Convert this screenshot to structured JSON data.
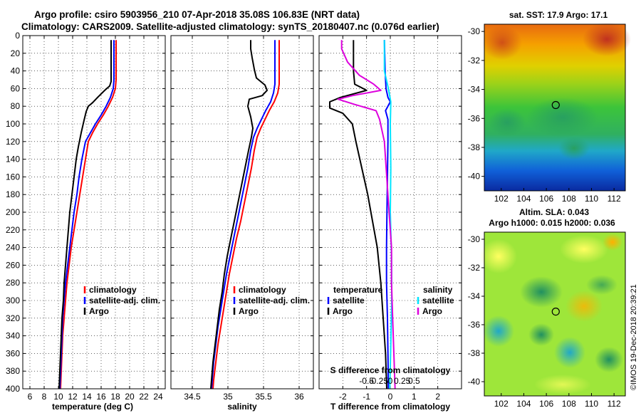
{
  "colors": {
    "climatology": "#ff0000",
    "satellite": "#0000ff",
    "argo": "#000000",
    "temp_sat": "#0000ff",
    "temp_argo": "#000000",
    "sal_sat": "#00e5ff",
    "sal_argo": "#dd00dd",
    "grid": "#000000",
    "marker": "#000000"
  },
  "header": {
    "line1": "Argo profile: csiro 5903956_210 07-Apr-2018 35.08S 106.83E (NRT data)",
    "line2": "Climatology: CARS2009. Satellite-adjusted climatology: synTS_20180407.nc (0.076d earlier)"
  },
  "watermark": "©IMOS 19-Dec-2018 20:39:21",
  "chart_data": [
    {
      "type": "line",
      "panel": "temperature",
      "xlabel": "temperature (deg C)",
      "ylabel": "",
      "xlim": [
        5,
        25
      ],
      "ylim": [
        0,
        400
      ],
      "xticks": [
        6,
        8,
        10,
        12,
        14,
        16,
        18,
        20,
        22,
        24
      ],
      "yticks": [
        0,
        20,
        40,
        60,
        80,
        100,
        120,
        140,
        160,
        180,
        200,
        220,
        240,
        260,
        280,
        300,
        320,
        340,
        360,
        380,
        400
      ],
      "grid": true,
      "legend": [
        "climatology",
        "satellite-adj. clim.",
        "Argo"
      ],
      "series": [
        {
          "name": "climatology",
          "color_key": "climatology",
          "points": [
            [
              18.1,
              5
            ],
            [
              18.1,
              50
            ],
            [
              18.0,
              60
            ],
            [
              17.6,
              70
            ],
            [
              17.0,
              80
            ],
            [
              16.3,
              90
            ],
            [
              15.5,
              100
            ],
            [
              14.8,
              110
            ],
            [
              14.2,
              120
            ],
            [
              13.8,
              140
            ],
            [
              13.4,
              160
            ],
            [
              13.0,
              180
            ],
            [
              12.6,
              200
            ],
            [
              12.2,
              220
            ],
            [
              11.8,
              240
            ],
            [
              11.5,
              260
            ],
            [
              11.2,
              280
            ],
            [
              11.0,
              300
            ],
            [
              10.8,
              320
            ],
            [
              10.6,
              340
            ],
            [
              10.5,
              360
            ],
            [
              10.4,
              380
            ],
            [
              10.3,
              400
            ]
          ]
        },
        {
          "name": "satellite-adj. clim.",
          "color_key": "satellite",
          "points": [
            [
              17.8,
              5
            ],
            [
              17.8,
              50
            ],
            [
              17.7,
              60
            ],
            [
              17.3,
              70
            ],
            [
              16.7,
              80
            ],
            [
              16.0,
              90
            ],
            [
              15.2,
              100
            ],
            [
              14.5,
              110
            ],
            [
              13.8,
              120
            ],
            [
              13.3,
              140
            ],
            [
              12.9,
              160
            ],
            [
              12.6,
              180
            ],
            [
              12.2,
              200
            ],
            [
              11.9,
              220
            ],
            [
              11.6,
              240
            ],
            [
              11.3,
              260
            ],
            [
              11.0,
              280
            ],
            [
              10.8,
              300
            ],
            [
              10.6,
              320
            ],
            [
              10.5,
              340
            ],
            [
              10.4,
              360
            ],
            [
              10.3,
              380
            ],
            [
              10.2,
              400
            ]
          ]
        },
        {
          "name": "Argo",
          "color_key": "argo",
          "points": [
            [
              17.4,
              5
            ],
            [
              17.4,
              52
            ],
            [
              17.2,
              57
            ],
            [
              16.5,
              62
            ],
            [
              15.5,
              70
            ],
            [
              14.8,
              76
            ],
            [
              14.2,
              80
            ],
            [
              13.9,
              86
            ],
            [
              13.6,
              96
            ],
            [
              13.2,
              110
            ],
            [
              12.8,
              126
            ],
            [
              12.5,
              140
            ],
            [
              12.2,
              160
            ],
            [
              11.9,
              180
            ],
            [
              11.6,
              200
            ],
            [
              11.4,
              220
            ],
            [
              11.2,
              240
            ],
            [
              11.0,
              260
            ],
            [
              10.8,
              280
            ],
            [
              10.7,
              300
            ],
            [
              10.5,
              320
            ],
            [
              10.4,
              340
            ],
            [
              10.3,
              360
            ],
            [
              10.2,
              380
            ],
            [
              10.1,
              400
            ]
          ]
        }
      ]
    },
    {
      "type": "line",
      "panel": "salinity",
      "xlabel": "salinity",
      "ylabel": "",
      "xlim": [
        34.2,
        36.2
      ],
      "ylim": [
        0,
        400
      ],
      "xticks": [
        34.5,
        35,
        35.5,
        36
      ],
      "xticklabels": [
        "34.5",
        "35",
        "35.5",
        "36"
      ],
      "grid": true,
      "legend": [
        "climatology",
        "satellite-adj. clim.",
        "Argo"
      ],
      "series": [
        {
          "name": "climatology",
          "color_key": "climatology",
          "points": [
            [
              35.72,
              5
            ],
            [
              35.72,
              55
            ],
            [
              35.7,
              65
            ],
            [
              35.65,
              75
            ],
            [
              35.58,
              85
            ],
            [
              35.52,
              95
            ],
            [
              35.46,
              105
            ],
            [
              35.41,
              115
            ],
            [
              35.37,
              130
            ],
            [
              35.33,
              150
            ],
            [
              35.28,
              170
            ],
            [
              35.23,
              190
            ],
            [
              35.18,
              210
            ],
            [
              35.12,
              230
            ],
            [
              35.07,
              250
            ],
            [
              35.02,
              270
            ],
            [
              34.98,
              290
            ],
            [
              34.94,
              310
            ],
            [
              34.9,
              330
            ],
            [
              34.86,
              350
            ],
            [
              34.83,
              370
            ],
            [
              34.8,
              390
            ],
            [
              34.79,
              400
            ]
          ]
        },
        {
          "name": "satellite-adj. clim.",
          "color_key": "satellite",
          "points": [
            [
              35.66,
              5
            ],
            [
              35.66,
              55
            ],
            [
              35.64,
              65
            ],
            [
              35.6,
              75
            ],
            [
              35.53,
              85
            ],
            [
              35.47,
              95
            ],
            [
              35.41,
              105
            ],
            [
              35.36,
              115
            ],
            [
              35.32,
              130
            ],
            [
              35.28,
              150
            ],
            [
              35.23,
              170
            ],
            [
              35.18,
              190
            ],
            [
              35.13,
              210
            ],
            [
              35.08,
              230
            ],
            [
              35.03,
              250
            ],
            [
              34.98,
              270
            ],
            [
              34.94,
              290
            ],
            [
              34.9,
              310
            ],
            [
              34.86,
              330
            ],
            [
              34.83,
              350
            ],
            [
              34.8,
              370
            ],
            [
              34.78,
              390
            ],
            [
              34.77,
              400
            ]
          ]
        },
        {
          "name": "Argo",
          "color_key": "argo",
          "points": [
            [
              35.32,
              5
            ],
            [
              35.32,
              15
            ],
            [
              35.34,
              25
            ],
            [
              35.37,
              38
            ],
            [
              35.4,
              48
            ],
            [
              35.52,
              56
            ],
            [
              35.55,
              62
            ],
            [
              35.48,
              68
            ],
            [
              35.3,
              72
            ],
            [
              35.28,
              80
            ],
            [
              35.32,
              92
            ],
            [
              35.35,
              105
            ],
            [
              35.33,
              115
            ],
            [
              35.29,
              130
            ],
            [
              35.24,
              150
            ],
            [
              35.19,
              170
            ],
            [
              35.14,
              190
            ],
            [
              35.09,
              210
            ],
            [
              35.04,
              230
            ],
            [
              34.99,
              250
            ],
            [
              34.95,
              270
            ],
            [
              34.92,
              290
            ],
            [
              34.88,
              310
            ],
            [
              34.85,
              330
            ],
            [
              34.82,
              350
            ],
            [
              34.79,
              370
            ],
            [
              34.77,
              390
            ],
            [
              34.76,
              400
            ]
          ]
        }
      ]
    },
    {
      "type": "line",
      "panel": "difference",
      "xlabel": "T difference from climatology",
      "xlabel_top": "S difference from climatology",
      "xlim": [
        -3,
        3
      ],
      "ylim": [
        0,
        400
      ],
      "xticks": [
        -2,
        -1,
        0,
        1,
        2
      ],
      "xticklabels": [
        "-2",
        "-1",
        "0",
        "1",
        "2"
      ],
      "sticks": [
        -0.5,
        -0.25,
        0,
        0.25,
        0.5
      ],
      "sticklabels": [
        "-0.5",
        "-0.25",
        "0",
        "0.25",
        "0.5"
      ],
      "grid": true,
      "legend_temperature_title": "temperature",
      "legend_salinity_title": "salinity",
      "legend_temperature": [
        "satellite",
        "Argo"
      ],
      "legend_salinity": [
        "satellite",
        "Argo"
      ],
      "series": [
        {
          "name": "temperature satellite",
          "color_key": "temp_sat",
          "points": [
            [
              -0.25,
              5
            ],
            [
              -0.22,
              40
            ],
            [
              -0.18,
              60
            ],
            [
              -0.1,
              70
            ],
            [
              0.0,
              75
            ],
            [
              -0.2,
              85
            ],
            [
              -0.1,
              95
            ],
            [
              -0.1,
              120
            ],
            [
              -0.12,
              160
            ],
            [
              -0.14,
              200
            ],
            [
              -0.16,
              240
            ],
            [
              -0.16,
              280
            ],
            [
              -0.12,
              320
            ],
            [
              -0.1,
              360
            ],
            [
              -0.08,
              400
            ]
          ]
        },
        {
          "name": "temperature Argo",
          "color_key": "temp_argo",
          "points": [
            [
              -1.55,
              5
            ],
            [
              -1.55,
              40
            ],
            [
              -1.5,
              55
            ],
            [
              -1.0,
              62
            ],
            [
              -2.1,
              70
            ],
            [
              -2.55,
              75
            ],
            [
              -2.55,
              82
            ],
            [
              -2.0,
              88
            ],
            [
              -1.6,
              100
            ],
            [
              -1.45,
              120
            ],
            [
              -1.2,
              150
            ],
            [
              -0.95,
              180
            ],
            [
              -0.75,
              210
            ],
            [
              -0.55,
              240
            ],
            [
              -0.4,
              280
            ],
            [
              -0.3,
              320
            ],
            [
              -0.2,
              360
            ],
            [
              -0.15,
              400
            ]
          ]
        },
        {
          "name": "salinity satellite",
          "color_key": "sal_sat",
          "points": [
            [
              -0.25,
              5
            ],
            [
              -0.25,
              40
            ],
            [
              -0.08,
              60
            ],
            [
              0.02,
              75
            ],
            [
              0.0,
              100
            ],
            [
              0.02,
              150
            ],
            [
              0.0,
              200
            ],
            [
              0.05,
              250
            ],
            [
              0.06,
              300
            ],
            [
              0.02,
              350
            ],
            [
              -0.02,
              400
            ]
          ]
        },
        {
          "name": "salinity Argo",
          "color_key": "sal_argo",
          "points": [
            [
              -2.05,
              5
            ],
            [
              -2.05,
              15
            ],
            [
              -1.8,
              30
            ],
            [
              -1.3,
              45
            ],
            [
              -0.7,
              55
            ],
            [
              -0.4,
              62
            ],
            [
              -1.6,
              68
            ],
            [
              -2.2,
              72
            ],
            [
              -1.5,
              78
            ],
            [
              -0.6,
              85
            ],
            [
              -0.45,
              95
            ],
            [
              -0.25,
              120
            ],
            [
              -0.15,
              160
            ],
            [
              -0.05,
              200
            ],
            [
              0.05,
              240
            ],
            [
              0.05,
              280
            ],
            [
              0.1,
              320
            ],
            [
              0.15,
              360
            ],
            [
              0.2,
              400
            ]
          ]
        }
      ]
    },
    {
      "type": "heatmap",
      "panel": "sst-map",
      "title": "sat. SST: 17.9 Argo: 17.1",
      "xlim": [
        100.5,
        113
      ],
      "ylim": [
        -41,
        -29.5
      ],
      "xticks": [
        102,
        104,
        106,
        108,
        110,
        112
      ],
      "yticks": [
        -30,
        -32,
        -34,
        -36,
        -38,
        -40
      ],
      "argo_position": [
        106.83,
        -35.08
      ]
    },
    {
      "type": "heatmap",
      "panel": "sla-map",
      "title1": "Altim. SLA: 0.043",
      "title2": "Argo h1000: 0.015 h2000: 0.036",
      "xlim": [
        100.5,
        113
      ],
      "ylim": [
        -41,
        -29.5
      ],
      "xticks": [
        102,
        104,
        106,
        108,
        110,
        112
      ],
      "yticks": [
        -30,
        -32,
        -34,
        -36,
        -38,
        -40
      ],
      "argo_position": [
        106.83,
        -35.08
      ]
    }
  ]
}
